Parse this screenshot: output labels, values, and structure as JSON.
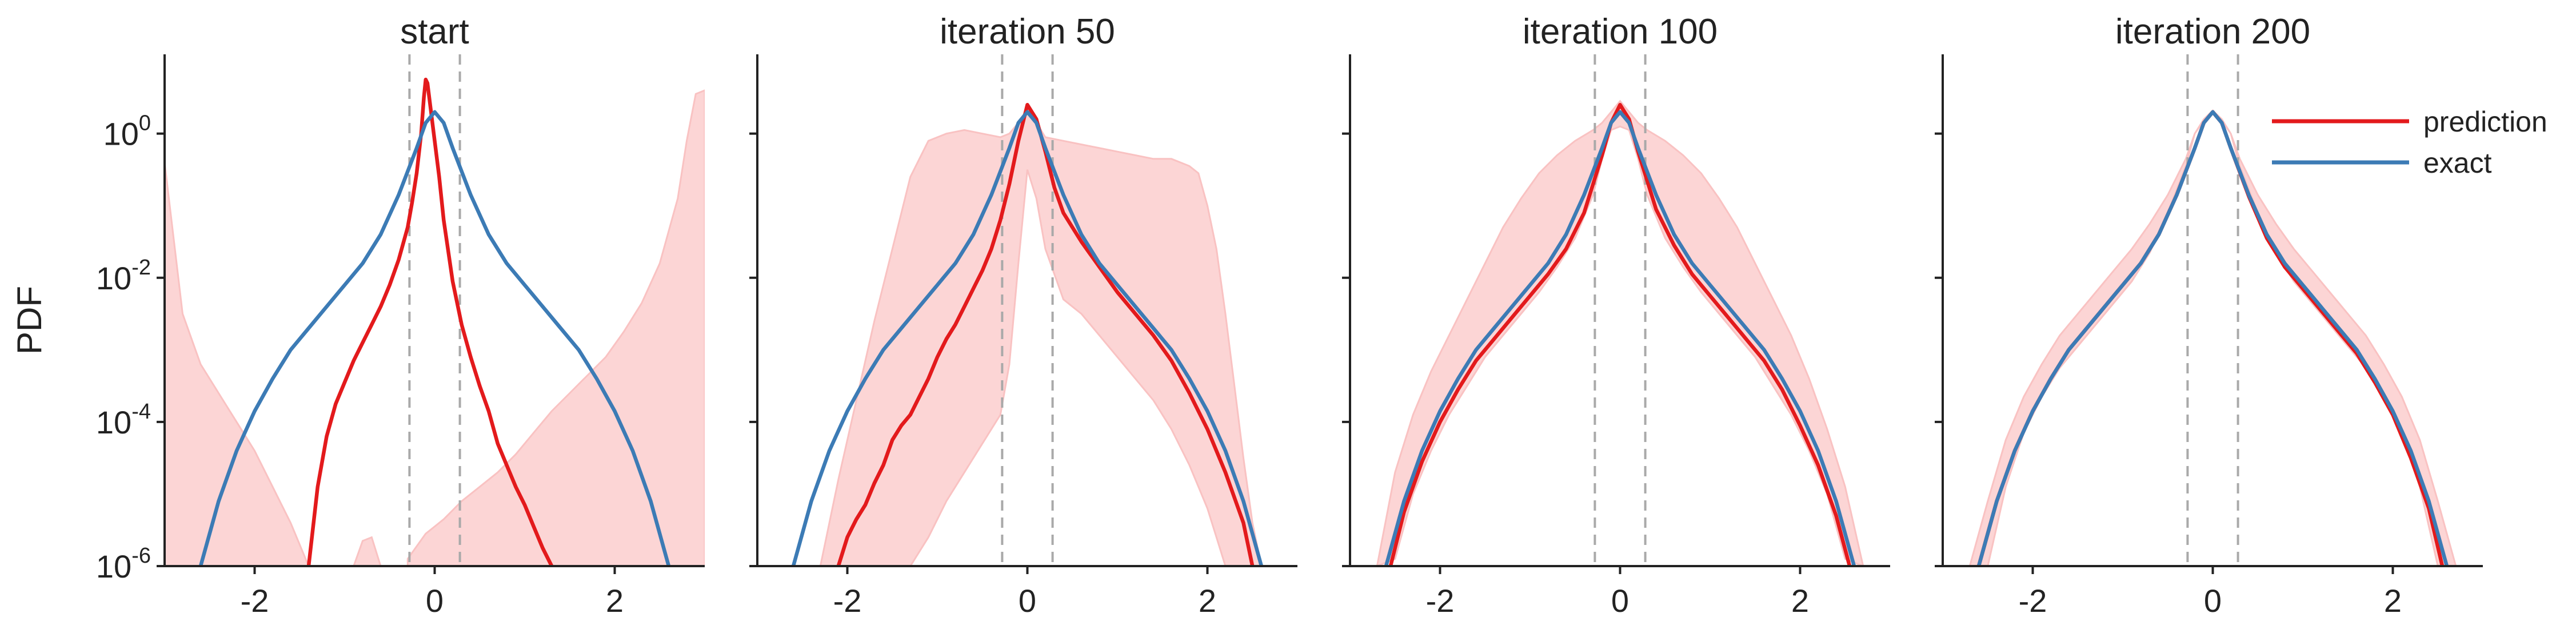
{
  "figure": {
    "ylabel": "PDF",
    "legend": {
      "placement": "top-right",
      "entries": [
        "prediction",
        "exact"
      ]
    }
  },
  "colors": {
    "prediction": "#e31a1c",
    "exact": "#3c7bb5",
    "band": "#fcd5d5",
    "band_edge": "#f9c2c2",
    "vline": "#a9a9a9",
    "axis": "#222222"
  },
  "chart_data": [
    {
      "type": "line",
      "title": "start",
      "xlim": [
        -3,
        3
      ],
      "ylim_log10": [
        -6,
        1.1
      ],
      "yscale": "log",
      "xticks": [
        -2,
        0,
        2
      ],
      "yticks_log10": [
        0,
        -2,
        -4,
        -6
      ],
      "vlines": [
        -0.28,
        0.28
      ],
      "series": [
        {
          "name": "prediction",
          "x": [
            -1.4,
            -1.3,
            -1.2,
            -1.1,
            -1.0,
            -0.9,
            -0.8,
            -0.7,
            -0.6,
            -0.5,
            -0.4,
            -0.3,
            -0.25,
            -0.2,
            -0.15,
            -0.12,
            -0.1,
            -0.08,
            -0.05,
            0.0,
            0.05,
            0.1,
            0.2,
            0.3,
            0.4,
            0.5,
            0.6,
            0.7,
            0.8,
            0.9,
            1.0,
            1.1,
            1.2,
            1.3
          ],
          "log10y": [
            -6.0,
            -4.9,
            -4.2,
            -3.75,
            -3.45,
            -3.15,
            -2.9,
            -2.65,
            -2.4,
            -2.1,
            -1.75,
            -1.3,
            -0.95,
            -0.55,
            0.0,
            0.5,
            0.75,
            0.7,
            0.4,
            -0.1,
            -0.6,
            -1.2,
            -2.05,
            -2.65,
            -3.1,
            -3.5,
            -3.85,
            -4.3,
            -4.6,
            -4.9,
            -5.15,
            -5.45,
            -5.75,
            -6.0
          ]
        },
        {
          "name": "exact",
          "x": [
            -2.6,
            -2.4,
            -2.2,
            -2.0,
            -1.8,
            -1.6,
            -1.4,
            -1.2,
            -1.0,
            -0.8,
            -0.6,
            -0.4,
            -0.2,
            -0.1,
            0.0,
            0.1,
            0.2,
            0.4,
            0.6,
            0.8,
            1.0,
            1.2,
            1.4,
            1.6,
            1.8,
            2.0,
            2.2,
            2.4,
            2.6
          ],
          "log10y": [
            -6.0,
            -5.1,
            -4.4,
            -3.85,
            -3.4,
            -3.0,
            -2.7,
            -2.4,
            -2.1,
            -1.8,
            -1.4,
            -0.85,
            -0.2,
            0.15,
            0.3,
            0.15,
            -0.2,
            -0.85,
            -1.4,
            -1.8,
            -2.1,
            -2.4,
            -2.7,
            -3.0,
            -3.4,
            -3.85,
            -4.4,
            -5.1,
            -6.0
          ]
        }
      ],
      "bands": [
        {
          "x": [
            -3.0,
            -2.8,
            -2.6,
            -2.4,
            -2.2,
            -2.0,
            -1.8,
            -1.6,
            -1.4
          ],
          "upper_log10": [
            -0.4,
            -2.5,
            -3.2,
            -3.6,
            -4.0,
            -4.4,
            -4.9,
            -5.4,
            -6.0
          ],
          "lower_log10": [
            -6,
            -6,
            -6,
            -6,
            -6,
            -6,
            -6,
            -6,
            -6
          ]
        },
        {
          "x": [
            -0.9,
            -0.8,
            -0.7,
            -0.6
          ],
          "upper_log10": [
            -6.0,
            -5.65,
            -5.6,
            -6.0
          ],
          "lower_log10": [
            -6,
            -6,
            -6,
            -6
          ]
        },
        {
          "x": [
            -0.3,
            -0.1,
            0.1,
            0.3,
            0.5,
            0.7,
            0.9,
            1.1,
            1.3,
            1.5,
            1.7,
            1.9,
            2.1,
            2.3,
            2.5,
            2.7,
            2.8,
            2.9,
            3.0
          ],
          "upper_log10": [
            -5.9,
            -5.55,
            -5.35,
            -5.1,
            -4.9,
            -4.7,
            -4.45,
            -4.15,
            -3.85,
            -3.6,
            -3.35,
            -3.1,
            -2.75,
            -2.35,
            -1.8,
            -0.9,
            -0.1,
            0.55,
            0.6
          ],
          "lower_log10": [
            -6,
            -6,
            -6,
            -6,
            -6,
            -6,
            -6,
            -6,
            -6,
            -6,
            -6,
            -6,
            -6,
            -6,
            -6,
            -6,
            -6,
            -6,
            -6
          ]
        }
      ]
    },
    {
      "type": "line",
      "title": "iteration 50",
      "xlim": [
        -3,
        3
      ],
      "ylim_log10": [
        -6,
        1.1
      ],
      "yscale": "log",
      "xticks": [
        -2,
        0,
        2
      ],
      "yticks_log10": [
        0,
        -2,
        -4,
        -6
      ],
      "vlines": [
        -0.28,
        0.28
      ],
      "series": [
        {
          "name": "prediction",
          "x": [
            -2.1,
            -2.0,
            -1.9,
            -1.8,
            -1.7,
            -1.6,
            -1.5,
            -1.4,
            -1.3,
            -1.2,
            -1.1,
            -1.0,
            -0.9,
            -0.8,
            -0.7,
            -0.6,
            -0.5,
            -0.4,
            -0.3,
            -0.2,
            -0.1,
            0.0,
            0.1,
            0.2,
            0.3,
            0.4,
            0.6,
            0.8,
            1.0,
            1.2,
            1.4,
            1.6,
            1.8,
            2.0,
            2.2,
            2.4,
            2.5
          ],
          "log10y": [
            -6.0,
            -5.6,
            -5.35,
            -5.15,
            -4.85,
            -4.6,
            -4.25,
            -4.05,
            -3.9,
            -3.65,
            -3.4,
            -3.1,
            -2.85,
            -2.65,
            -2.4,
            -2.15,
            -1.9,
            -1.6,
            -1.2,
            -0.7,
            -0.1,
            0.4,
            0.2,
            -0.25,
            -0.75,
            -1.1,
            -1.5,
            -1.85,
            -2.2,
            -2.5,
            -2.8,
            -3.15,
            -3.6,
            -4.1,
            -4.7,
            -5.4,
            -6.0
          ]
        },
        {
          "name": "exact",
          "x": [
            -2.6,
            -2.4,
            -2.2,
            -2.0,
            -1.8,
            -1.6,
            -1.4,
            -1.2,
            -1.0,
            -0.8,
            -0.6,
            -0.4,
            -0.2,
            -0.1,
            0.0,
            0.1,
            0.2,
            0.4,
            0.6,
            0.8,
            1.0,
            1.2,
            1.4,
            1.6,
            1.8,
            2.0,
            2.2,
            2.4,
            2.6
          ],
          "log10y": [
            -6.0,
            -5.1,
            -4.4,
            -3.85,
            -3.4,
            -3.0,
            -2.7,
            -2.4,
            -2.1,
            -1.8,
            -1.4,
            -0.85,
            -0.2,
            0.15,
            0.3,
            0.15,
            -0.2,
            -0.85,
            -1.4,
            -1.8,
            -2.1,
            -2.4,
            -2.7,
            -3.0,
            -3.4,
            -3.85,
            -4.4,
            -5.1,
            -6.0
          ]
        }
      ],
      "bands": [
        {
          "x": [
            -2.3,
            -2.1,
            -1.9,
            -1.7,
            -1.5,
            -1.3,
            -1.1,
            -0.9,
            -0.7,
            -0.5,
            -0.3,
            -0.2,
            -0.1,
            0.0,
            0.1,
            0.2,
            0.4,
            0.6,
            0.8,
            1.0,
            1.2,
            1.4,
            1.6,
            1.8,
            1.9,
            2.0,
            2.1,
            2.2,
            2.3,
            2.4,
            2.5,
            2.6
          ],
          "upper_log10": [
            -6.0,
            -4.8,
            -3.7,
            -2.6,
            -1.6,
            -0.6,
            -0.1,
            0.0,
            0.05,
            0.0,
            -0.05,
            0.0,
            0.15,
            0.35,
            0.15,
            -0.05,
            -0.1,
            -0.15,
            -0.2,
            -0.25,
            -0.3,
            -0.35,
            -0.35,
            -0.45,
            -0.55,
            -1.0,
            -1.6,
            -2.5,
            -3.5,
            -4.5,
            -5.4,
            -6.0
          ],
          "lower_log10": [
            -6.0,
            -6.0,
            -6.0,
            -6.0,
            -6.0,
            -6.0,
            -5.6,
            -5.1,
            -4.7,
            -4.3,
            -3.9,
            -3.2,
            -1.8,
            -0.5,
            -0.9,
            -1.6,
            -2.3,
            -2.5,
            -2.8,
            -3.1,
            -3.4,
            -3.7,
            -4.1,
            -4.6,
            -4.9,
            -5.2,
            -5.6,
            -6.0,
            -6.0,
            -6.0,
            -6.0,
            -6.0
          ]
        }
      ]
    },
    {
      "type": "line",
      "title": "iteration 100",
      "xlim": [
        -3,
        3
      ],
      "ylim_log10": [
        -6,
        1.1
      ],
      "yscale": "log",
      "xticks": [
        -2,
        0,
        2
      ],
      "yticks_log10": [
        0,
        -2,
        -4,
        -6
      ],
      "vlines": [
        -0.28,
        0.28
      ],
      "series": [
        {
          "name": "prediction",
          "x": [
            -2.55,
            -2.4,
            -2.2,
            -2.0,
            -1.8,
            -1.6,
            -1.4,
            -1.2,
            -1.0,
            -0.8,
            -0.6,
            -0.4,
            -0.2,
            -0.1,
            0.0,
            0.1,
            0.2,
            0.4,
            0.6,
            0.8,
            1.0,
            1.2,
            1.4,
            1.6,
            1.8,
            2.0,
            2.2,
            2.4,
            2.55
          ],
          "log10y": [
            -6.0,
            -5.25,
            -4.55,
            -4.0,
            -3.55,
            -3.15,
            -2.85,
            -2.55,
            -2.25,
            -1.95,
            -1.6,
            -1.1,
            -0.3,
            0.15,
            0.4,
            0.2,
            -0.25,
            -1.05,
            -1.55,
            -1.95,
            -2.25,
            -2.55,
            -2.85,
            -3.15,
            -3.55,
            -4.05,
            -4.6,
            -5.3,
            -6.0
          ]
        },
        {
          "name": "exact",
          "x": [
            -2.6,
            -2.4,
            -2.2,
            -2.0,
            -1.8,
            -1.6,
            -1.4,
            -1.2,
            -1.0,
            -0.8,
            -0.6,
            -0.4,
            -0.2,
            -0.1,
            0.0,
            0.1,
            0.2,
            0.4,
            0.6,
            0.8,
            1.0,
            1.2,
            1.4,
            1.6,
            1.8,
            2.0,
            2.2,
            2.4,
            2.6
          ],
          "log10y": [
            -6.0,
            -5.1,
            -4.4,
            -3.85,
            -3.4,
            -3.0,
            -2.7,
            -2.4,
            -2.1,
            -1.8,
            -1.4,
            -0.85,
            -0.2,
            0.15,
            0.3,
            0.15,
            -0.2,
            -0.85,
            -1.4,
            -1.8,
            -2.1,
            -2.4,
            -2.7,
            -3.0,
            -3.4,
            -3.85,
            -4.4,
            -5.1,
            -6.0
          ]
        }
      ],
      "bands": [
        {
          "x": [
            -2.7,
            -2.5,
            -2.3,
            -2.1,
            -1.9,
            -1.7,
            -1.5,
            -1.3,
            -1.1,
            -0.9,
            -0.7,
            -0.5,
            -0.3,
            -0.2,
            -0.1,
            0.0,
            0.1,
            0.2,
            0.3,
            0.5,
            0.7,
            0.9,
            1.1,
            1.3,
            1.5,
            1.7,
            1.9,
            2.1,
            2.3,
            2.5,
            2.7
          ],
          "upper_log10": [
            -6.0,
            -4.7,
            -3.9,
            -3.3,
            -2.8,
            -2.3,
            -1.8,
            -1.3,
            -0.9,
            -0.55,
            -0.3,
            -0.1,
            0.05,
            0.15,
            0.3,
            0.45,
            0.3,
            0.15,
            0.05,
            -0.1,
            -0.3,
            -0.55,
            -0.9,
            -1.3,
            -1.8,
            -2.3,
            -2.8,
            -3.4,
            -4.1,
            -4.9,
            -6.0
          ],
          "lower_log10": [
            -6.0,
            -5.9,
            -5.0,
            -4.4,
            -3.9,
            -3.5,
            -3.1,
            -2.8,
            -2.5,
            -2.2,
            -1.85,
            -1.45,
            -0.85,
            -0.35,
            0.05,
            0.1,
            0.05,
            -0.35,
            -0.85,
            -1.45,
            -1.85,
            -2.2,
            -2.5,
            -2.8,
            -3.1,
            -3.5,
            -3.9,
            -4.4,
            -5.0,
            -5.9,
            -6.0
          ]
        }
      ]
    },
    {
      "type": "line",
      "title": "iteration 200",
      "xlim": [
        -3,
        3
      ],
      "ylim_log10": [
        -6,
        1.1
      ],
      "yscale": "log",
      "xticks": [
        -2,
        0,
        2
      ],
      "yticks_log10": [
        0,
        -2,
        -4,
        -6
      ],
      "vlines": [
        -0.28,
        0.28
      ],
      "series": [
        {
          "name": "prediction",
          "x": [
            -2.6,
            -2.4,
            -2.2,
            -2.0,
            -1.8,
            -1.6,
            -1.4,
            -1.2,
            -1.0,
            -0.8,
            -0.6,
            -0.4,
            -0.2,
            -0.1,
            0.0,
            0.1,
            0.2,
            0.4,
            0.6,
            0.8,
            1.0,
            1.2,
            1.4,
            1.6,
            1.8,
            2.0,
            2.2,
            2.4,
            2.55
          ],
          "log10y": [
            -6.0,
            -5.1,
            -4.4,
            -3.85,
            -3.4,
            -3.0,
            -2.7,
            -2.4,
            -2.1,
            -1.8,
            -1.4,
            -0.85,
            -0.2,
            0.15,
            0.3,
            0.15,
            -0.2,
            -0.87,
            -1.45,
            -1.85,
            -2.15,
            -2.45,
            -2.75,
            -3.05,
            -3.45,
            -3.9,
            -4.5,
            -5.2,
            -6.0
          ]
        },
        {
          "name": "exact",
          "x": [
            -2.6,
            -2.4,
            -2.2,
            -2.0,
            -1.8,
            -1.6,
            -1.4,
            -1.2,
            -1.0,
            -0.8,
            -0.6,
            -0.4,
            -0.2,
            -0.1,
            0.0,
            0.1,
            0.2,
            0.4,
            0.6,
            0.8,
            1.0,
            1.2,
            1.4,
            1.6,
            1.8,
            2.0,
            2.2,
            2.4,
            2.6
          ],
          "log10y": [
            -6.0,
            -5.1,
            -4.4,
            -3.85,
            -3.4,
            -3.0,
            -2.7,
            -2.4,
            -2.1,
            -1.8,
            -1.4,
            -0.85,
            -0.2,
            0.15,
            0.3,
            0.15,
            -0.2,
            -0.85,
            -1.4,
            -1.8,
            -2.1,
            -2.4,
            -2.7,
            -3.0,
            -3.4,
            -3.85,
            -4.4,
            -5.1,
            -6.0
          ]
        }
      ],
      "bands": [
        {
          "x": [
            -2.7,
            -2.5,
            -2.3,
            -2.1,
            -1.9,
            -1.7,
            -1.5,
            -1.3,
            -1.1,
            -0.9,
            -0.7,
            -0.5,
            -0.3,
            -0.2,
            -0.1,
            0.0,
            0.1,
            0.2,
            0.3,
            0.5,
            0.7,
            0.9,
            1.1,
            1.3,
            1.5,
            1.7,
            1.9,
            2.1,
            2.3,
            2.5,
            2.7
          ],
          "upper_log10": [
            -6.0,
            -5.1,
            -4.25,
            -3.65,
            -3.2,
            -2.8,
            -2.5,
            -2.2,
            -1.9,
            -1.6,
            -1.25,
            -0.85,
            -0.35,
            0.0,
            0.2,
            0.32,
            0.2,
            0.0,
            -0.35,
            -0.85,
            -1.25,
            -1.6,
            -1.9,
            -2.2,
            -2.5,
            -2.8,
            -3.2,
            -3.65,
            -4.25,
            -5.1,
            -6.0
          ],
          "lower_log10": [
            -6.0,
            -6.0,
            -4.9,
            -4.15,
            -3.65,
            -3.25,
            -2.95,
            -2.65,
            -2.35,
            -2.05,
            -1.65,
            -1.1,
            -0.45,
            0.0,
            0.18,
            0.28,
            0.18,
            0.0,
            -0.45,
            -1.1,
            -1.65,
            -2.05,
            -2.35,
            -2.65,
            -2.95,
            -3.25,
            -3.65,
            -4.15,
            -4.9,
            -6.0,
            -6.0
          ]
        }
      ]
    }
  ]
}
